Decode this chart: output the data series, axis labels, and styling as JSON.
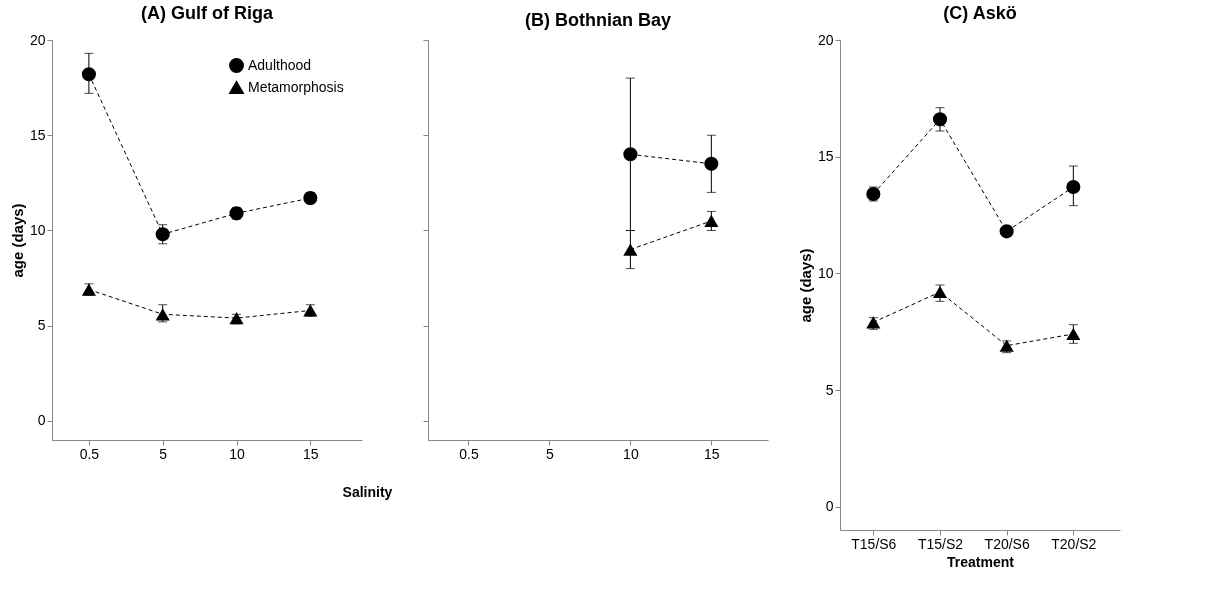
{
  "chart_data": [
    {
      "type": "line",
      "title": "(A) Gulf of Riga",
      "xlabel": "Salinity",
      "ylabel": "age (days)",
      "categories": [
        "0.5",
        "5",
        "10",
        "15"
      ],
      "ylim": [
        -1,
        20
      ],
      "yticks": [
        0,
        5,
        10,
        15,
        20
      ],
      "grid": false,
      "legend": "top right",
      "line_style": "dashed",
      "series": [
        {
          "name": "Adulthood",
          "color": "#000000",
          "marker": "circle",
          "values": [
            18.2,
            9.8,
            10.9,
            11.7
          ],
          "errors": [
            [
              17.2,
              19.3
            ],
            [
              9.3,
              10.3
            ],
            [
              10.6,
              11.2
            ],
            [
              11.4,
              12.0
            ]
          ]
        },
        {
          "name": "Metamorphosis",
          "color": "#000000",
          "marker": "triangle",
          "values": [
            6.9,
            5.6,
            5.4,
            5.8
          ],
          "errors": [
            [
              6.6,
              7.2
            ],
            [
              5.2,
              6.1
            ],
            [
              5.1,
              5.6
            ],
            [
              5.5,
              6.1
            ]
          ]
        }
      ]
    },
    {
      "type": "line",
      "title": "(B) Bothnian Bay",
      "categories": [
        "0.5",
        "5",
        "10",
        "15"
      ],
      "ylim": [
        -1,
        20
      ],
      "yticks": [
        0,
        5,
        10,
        15,
        20
      ],
      "tick_labels": "x",
      "grid": false,
      "line_style": "dashed",
      "series": [
        {
          "color": "#000000",
          "marker": "circle",
          "values": [
            null,
            null,
            14.0,
            13.5
          ],
          "errors": [
            null,
            null,
            [
              10.0,
              18.0
            ],
            [
              12.0,
              15.0
            ]
          ]
        },
        {
          "color": "#000000",
          "marker": "triangle",
          "values": [
            null,
            null,
            9.0,
            10.5
          ],
          "errors": [
            null,
            null,
            [
              8.0,
              10.0
            ],
            [
              10.0,
              11.0
            ]
          ]
        }
      ]
    },
    {
      "type": "line",
      "title": "(C) Askö",
      "xlabel": "Treatment",
      "ylabel": "age (days)",
      "categories": [
        "T15/S6",
        "T15/S2",
        "T20/S6",
        "T20/S2"
      ],
      "ylim": [
        -1,
        20
      ],
      "yticks": [
        0,
        5,
        10,
        15,
        20
      ],
      "grid": false,
      "line_style": "dashed",
      "series": [
        {
          "color": "#000000",
          "marker": "circle",
          "values": [
            13.4,
            16.6,
            11.8,
            13.7
          ],
          "errors": [
            [
              13.1,
              13.7
            ],
            [
              16.1,
              17.1
            ],
            [
              11.6,
              12.0
            ],
            [
              12.9,
              14.6
            ]
          ]
        },
        {
          "color": "#000000",
          "marker": "triangle",
          "values": [
            7.9,
            9.2,
            6.9,
            7.4
          ],
          "errors": [
            [
              7.6,
              8.1
            ],
            [
              8.8,
              9.5
            ],
            [
              6.6,
              7.1
            ],
            [
              7.0,
              7.8
            ]
          ]
        }
      ]
    }
  ]
}
